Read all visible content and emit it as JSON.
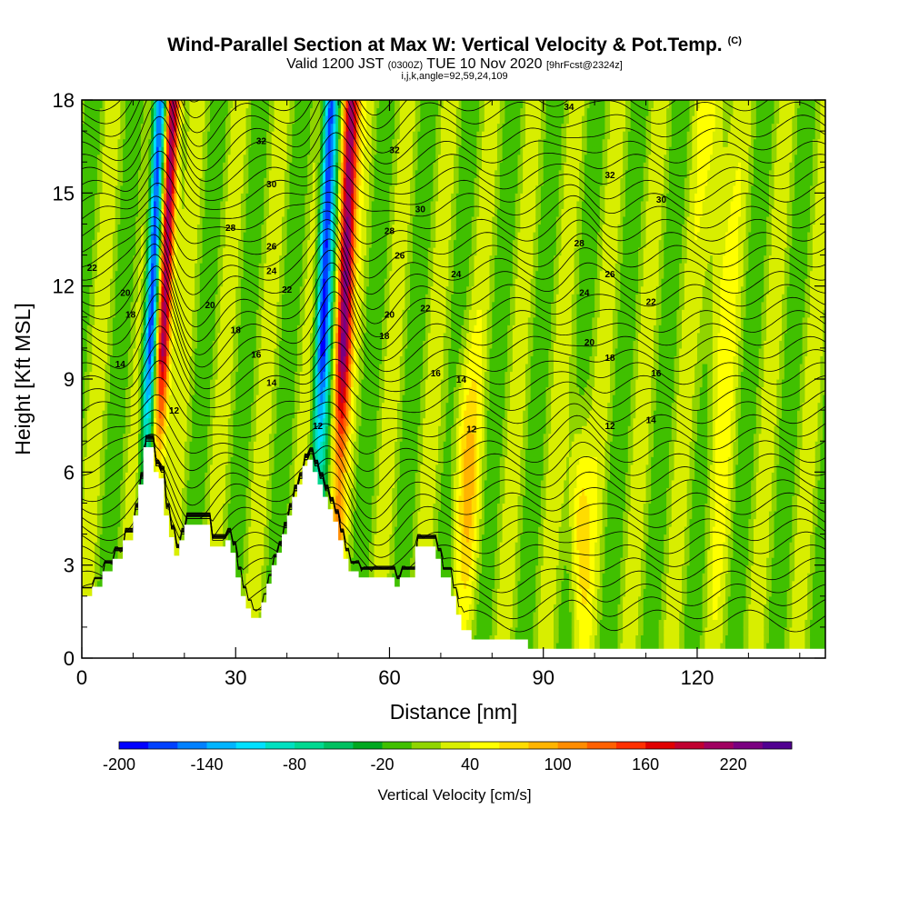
{
  "title": {
    "main": "Wind-Parallel Section at Max W: Vertical Velocity & Pot.Temp.",
    "mark": "(C)",
    "valid_prefix": "Valid 1200 JST",
    "valid_utc": "(0300Z)",
    "valid_date": "TUE 10 Nov 2020",
    "forecast": "[9hrFcst@2324z]",
    "params": "i,j,k,angle=92,59,24,109"
  },
  "chart_data": {
    "type": "heatmap",
    "xlabel": "Distance [nm]",
    "ylabel": "Height [Kft MSL]",
    "xlim": [
      0,
      145
    ],
    "ylim": [
      0,
      18
    ],
    "x_ticks": [
      "0",
      "30",
      "60",
      "90",
      "120"
    ],
    "y_ticks": [
      "0",
      "3",
      "6",
      "9",
      "12",
      "15",
      "18"
    ],
    "colorbar": {
      "label": "Vertical Velocity [cm/s]",
      "tick_labels": [
        "-200",
        "-140",
        "-80",
        "-20",
        "40",
        "100",
        "160",
        "220"
      ],
      "levels": [
        -200,
        -180,
        -160,
        -140,
        -120,
        -100,
        -80,
        -60,
        -40,
        -20,
        0,
        20,
        40,
        60,
        80,
        100,
        120,
        140,
        160,
        180,
        200,
        220,
        240
      ],
      "colors": [
        "#0000ff",
        "#0040ff",
        "#0080ff",
        "#00b4ff",
        "#00e0ff",
        "#00e0c0",
        "#00d890",
        "#00c060",
        "#00a820",
        "#40c000",
        "#90d400",
        "#d8ee00",
        "#ffff00",
        "#ffdc00",
        "#ffb400",
        "#ff8c00",
        "#ff6000",
        "#ff3000",
        "#e00000",
        "#c00030",
        "#a00060",
        "#7a0080",
        "#500090"
      ]
    },
    "terrain_kft": [
      [
        0,
        2
      ],
      [
        2,
        2.3
      ],
      [
        4,
        2.8
      ],
      [
        6,
        3.2
      ],
      [
        8,
        3.8
      ],
      [
        10,
        4.6
      ],
      [
        11,
        5.6
      ],
      [
        12,
        6.8
      ],
      [
        13,
        6.8
      ],
      [
        14,
        6
      ],
      [
        15,
        5.8
      ],
      [
        16,
        4.6
      ],
      [
        17,
        3.9
      ],
      [
        18,
        3.3
      ],
      [
        19,
        3.8
      ],
      [
        20,
        4.3
      ],
      [
        21,
        4.3
      ],
      [
        22,
        4.3
      ],
      [
        24,
        4.3
      ],
      [
        25,
        3.6
      ],
      [
        26,
        3.6
      ],
      [
        27,
        3.6
      ],
      [
        28,
        3.8
      ],
      [
        29,
        3.4
      ],
      [
        30,
        2.6
      ],
      [
        31,
        2
      ],
      [
        32,
        1.6
      ],
      [
        33,
        1.3
      ],
      [
        34,
        1.3
      ],
      [
        35,
        1.8
      ],
      [
        36,
        2.4
      ],
      [
        37,
        3
      ],
      [
        38,
        3.4
      ],
      [
        39,
        4
      ],
      [
        40,
        4.6
      ],
      [
        41,
        5.2
      ],
      [
        42,
        5.6
      ],
      [
        43,
        6.2
      ],
      [
        44,
        6.4
      ],
      [
        45,
        6
      ],
      [
        46,
        5.6
      ],
      [
        47,
        5.2
      ],
      [
        48,
        4.8
      ],
      [
        49,
        4.4
      ],
      [
        50,
        3.8
      ],
      [
        51,
        3.2
      ],
      [
        52,
        2.8
      ],
      [
        54,
        2.6
      ],
      [
        58,
        2.6
      ],
      [
        61,
        2.3
      ],
      [
        62,
        2.6
      ],
      [
        64,
        2.6
      ],
      [
        65,
        3.6
      ],
      [
        68,
        3.6
      ],
      [
        69,
        3.2
      ],
      [
        70,
        2.6
      ],
      [
        72,
        2.0
      ],
      [
        73,
        1.4
      ],
      [
        74,
        0.9
      ],
      [
        76,
        0.6
      ],
      [
        86,
        0.6
      ],
      [
        87,
        0.3
      ],
      [
        145,
        0.3
      ]
    ],
    "theta_contour_labels": [
      {
        "x": 2,
        "y": 12.6,
        "v": "22"
      },
      {
        "x": 8.5,
        "y": 11.8,
        "v": "20"
      },
      {
        "x": 9.5,
        "y": 11.1,
        "v": "18"
      },
      {
        "x": 7.5,
        "y": 9.5,
        "v": "14"
      },
      {
        "x": 18,
        "y": 8,
        "v": "12"
      },
      {
        "x": 35,
        "y": 16.7,
        "v": "32"
      },
      {
        "x": 37,
        "y": 15.3,
        "v": "30"
      },
      {
        "x": 29,
        "y": 13.9,
        "v": "28"
      },
      {
        "x": 37,
        "y": 13.3,
        "v": "26"
      },
      {
        "x": 37,
        "y": 12.5,
        "v": "24"
      },
      {
        "x": 40,
        "y": 11.9,
        "v": "22"
      },
      {
        "x": 25,
        "y": 11.4,
        "v": "20"
      },
      {
        "x": 30,
        "y": 10.6,
        "v": "18"
      },
      {
        "x": 34,
        "y": 9.8,
        "v": "16"
      },
      {
        "x": 37,
        "y": 8.9,
        "v": "14"
      },
      {
        "x": 46,
        "y": 7.5,
        "v": "12"
      },
      {
        "x": 61,
        "y": 16.4,
        "v": "32"
      },
      {
        "x": 66,
        "y": 14.5,
        "v": "30"
      },
      {
        "x": 60,
        "y": 13.8,
        "v": "28"
      },
      {
        "x": 62,
        "y": 13.0,
        "v": "26"
      },
      {
        "x": 73,
        "y": 12.4,
        "v": "24"
      },
      {
        "x": 67,
        "y": 11.3,
        "v": "22"
      },
      {
        "x": 60,
        "y": 11.1,
        "v": "20"
      },
      {
        "x": 59,
        "y": 10.4,
        "v": "18"
      },
      {
        "x": 69,
        "y": 9.2,
        "v": "16"
      },
      {
        "x": 74,
        "y": 9.0,
        "v": "14"
      },
      {
        "x": 76,
        "y": 7.4,
        "v": "12"
      },
      {
        "x": 95,
        "y": 17.8,
        "v": "34"
      },
      {
        "x": 103,
        "y": 15.6,
        "v": "32"
      },
      {
        "x": 113,
        "y": 14.8,
        "v": "30"
      },
      {
        "x": 97,
        "y": 13.4,
        "v": "28"
      },
      {
        "x": 103,
        "y": 12.4,
        "v": "26"
      },
      {
        "x": 98,
        "y": 11.8,
        "v": "24"
      },
      {
        "x": 111,
        "y": 11.5,
        "v": "22"
      },
      {
        "x": 99,
        "y": 10.2,
        "v": "20"
      },
      {
        "x": 103,
        "y": 9.7,
        "v": "18"
      },
      {
        "x": 112,
        "y": 9.2,
        "v": "16"
      },
      {
        "x": 111,
        "y": 7.7,
        "v": "14"
      },
      {
        "x": 103,
        "y": 7.5,
        "v": "12"
      }
    ]
  }
}
